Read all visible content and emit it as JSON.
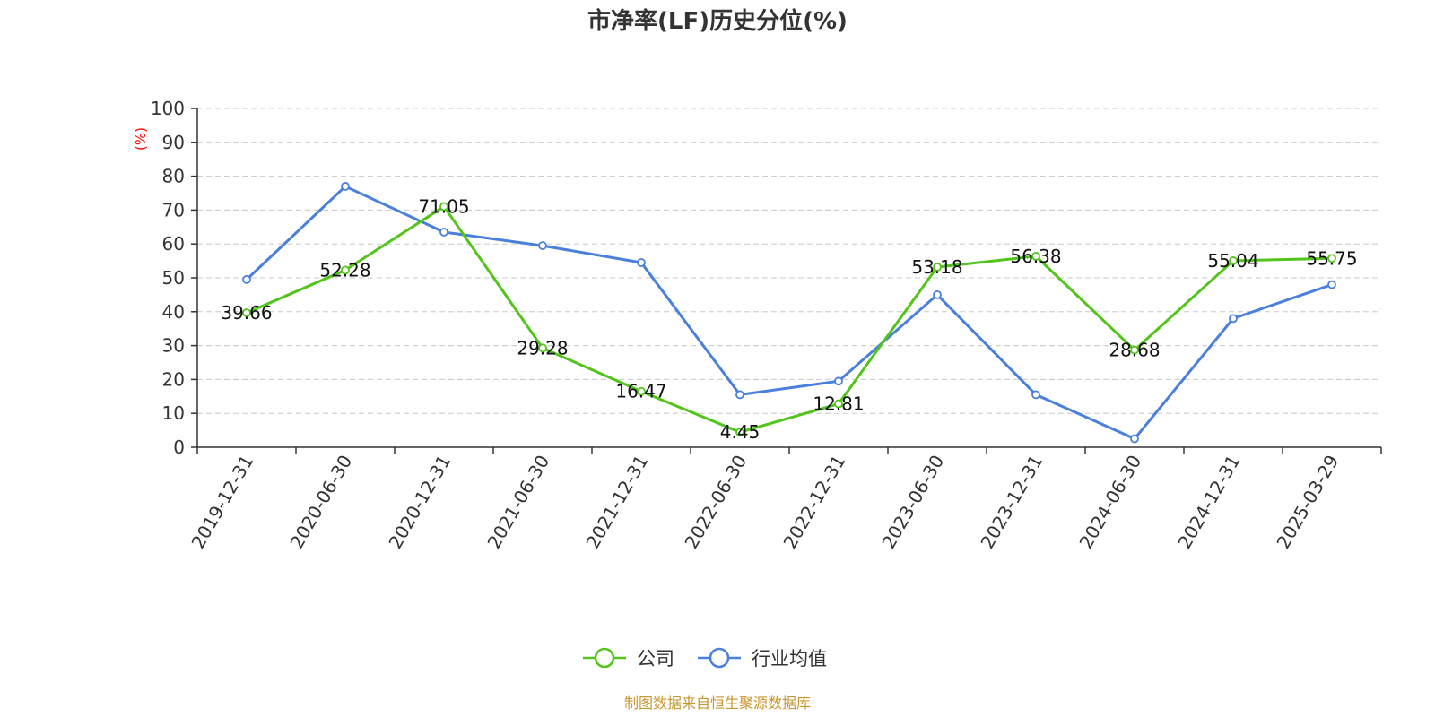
{
  "chart_data": {
    "type": "line",
    "title": "市净率(LF)历史分位(%)",
    "y_unit": "(%)",
    "categories": [
      "2019-12-31",
      "2020-06-30",
      "2020-12-31",
      "2021-06-30",
      "2021-12-31",
      "2022-06-30",
      "2022-12-31",
      "2023-06-30",
      "2023-12-31",
      "2024-06-30",
      "2024-12-31",
      "2025-03-29"
    ],
    "series": [
      {
        "name": "公司",
        "color": "#52c41a",
        "values": [
          39.66,
          52.28,
          71.05,
          29.28,
          16.47,
          4.45,
          12.81,
          53.18,
          56.38,
          28.68,
          55.04,
          55.75
        ],
        "labels": [
          "39.66",
          "52.28",
          "71.05",
          "29.28",
          "16.47",
          "4.45",
          "12.81",
          "53.18",
          "56.38",
          "28.68",
          "55.04",
          "55.75"
        ]
      },
      {
        "name": "行业均值",
        "color": "#4a7fdc",
        "values": [
          49.5,
          77,
          63.5,
          59.5,
          54.5,
          15.5,
          19.5,
          45,
          15.5,
          2.5,
          38,
          48
        ]
      }
    ],
    "yticks": [
      "0",
      "10",
      "20",
      "30",
      "40",
      "50",
      "60",
      "70",
      "80",
      "90",
      "100"
    ],
    "ylim": [
      0,
      100
    ],
    "grid": true,
    "legend_position": "bottom-center"
  },
  "source_text": "制图数据来自恒生聚源数据库",
  "source_color": "#c8962e"
}
